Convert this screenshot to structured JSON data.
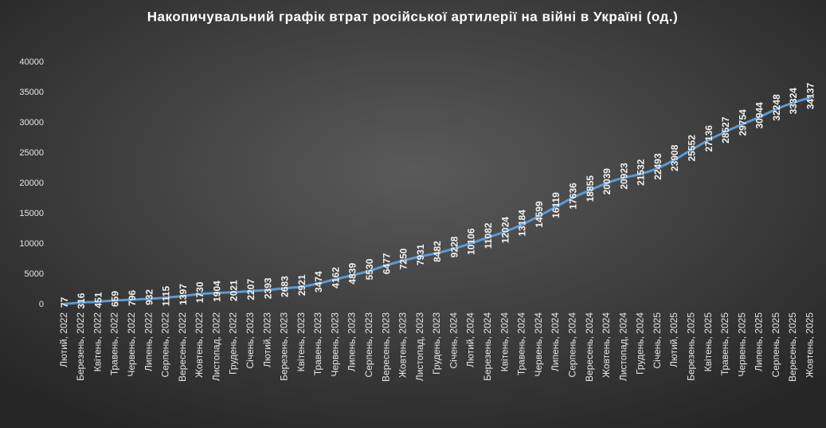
{
  "chart_data": {
    "type": "line",
    "title": "Накопичувальний  графік  втрат  російської  артилерії  на  війні  в Україні  (од.)",
    "categories": [
      "Лютий, 2022",
      "Березень, 2022",
      "Квітень, 2022",
      "Травень, 2022",
      "Червень, 2022",
      "Липень, 2022",
      "Серпень, 2022",
      "Вересень, 2022",
      "Жовтень, 2022",
      "Листопад, 2022",
      "Грудень, 2022",
      "Січень, 2023",
      "Лютий, 2023",
      "Березень, 2023",
      "Квітень, 2023",
      "Травень, 2023",
      "Червень, 2023",
      "Липень, 2023",
      "Серпень, 2023",
      "Вересень, 2023",
      "Жовтень, 2023",
      "Листопад, 2023",
      "Грудень, 2023",
      "Січень, 2024",
      "Лютий, 2024",
      "Березень, 2024",
      "Квітень, 2024",
      "Травень, 2024",
      "Червень, 2024",
      "Липень, 2024",
      "Серпень, 2024",
      "Вересень, 2024",
      "Жовтень, 2024",
      "Листопад, 2024",
      "Грудень, 2024",
      "Січень, 2025",
      "Лютий, 2025",
      "Березень, 2025",
      "Квітень, 2025",
      "Травень, 2025",
      "Червень, 2025",
      "Липень, 2025",
      "Серпень, 2025",
      "Вересень, 2025",
      "Жовтень, 2025"
    ],
    "values": [
      77,
      316,
      451,
      659,
      796,
      932,
      1115,
      1397,
      1730,
      1904,
      2021,
      2207,
      2393,
      2683,
      2921,
      3474,
      4162,
      4839,
      5530,
      6477,
      7250,
      7931,
      8482,
      9228,
      10106,
      11082,
      12024,
      13184,
      14599,
      16119,
      17636,
      18855,
      20039,
      20923,
      21532,
      22493,
      23908,
      25552,
      27136,
      28527,
      29754,
      30944,
      32248,
      33324,
      34137
    ],
    "color": "#5b9bd5",
    "ylim": [
      0,
      40000
    ],
    "yticks": [
      0,
      5000,
      10000,
      15000,
      20000,
      25000,
      30000,
      35000,
      40000
    ],
    "grid": false
  }
}
